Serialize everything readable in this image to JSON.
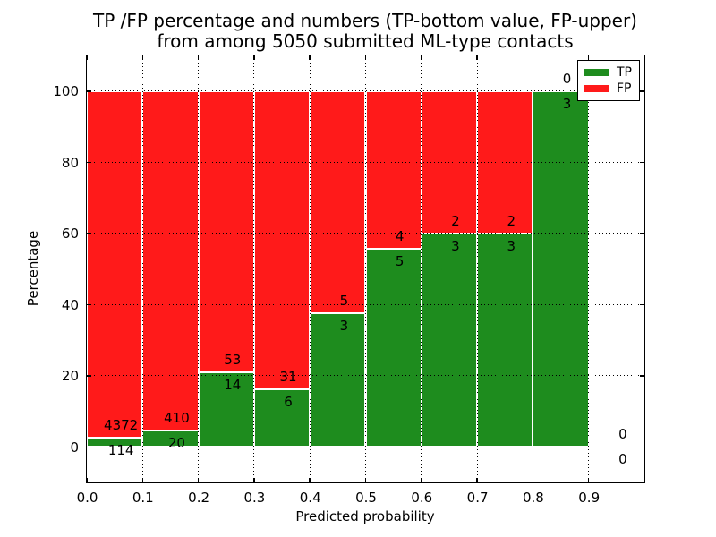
{
  "figure": {
    "title_line1": "TP /FP percentage and numbers (TP-bottom value, FP-upper)",
    "title_line2": "from among 5050 submitted ML-type contacts"
  },
  "chart_data": {
    "type": "bar",
    "subtype": "stacked-percentage-histogram",
    "title": "TP /FP percentage and numbers (TP-bottom value, FP-upper)\nfrom among 5050 submitted ML-type contacts",
    "xlabel": "Predicted probability",
    "ylabel": "Percentage",
    "xlim": [
      0.0,
      1.0
    ],
    "ylim": [
      -10,
      110
    ],
    "x_tick_labels": [
      "0.0",
      "0.1",
      "0.2",
      "0.3",
      "0.4",
      "0.5",
      "0.6",
      "0.7",
      "0.8",
      "0.9"
    ],
    "y_tick_values": [
      0,
      20,
      40,
      60,
      80,
      100
    ],
    "grid": true,
    "grid_style": "dotted",
    "bin_width": 0.1,
    "bins": [
      {
        "x_start": 0.0,
        "tp_count": 114,
        "fp_count": 4372
      },
      {
        "x_start": 0.1,
        "tp_count": 20,
        "fp_count": 410
      },
      {
        "x_start": 0.2,
        "tp_count": 14,
        "fp_count": 53
      },
      {
        "x_start": 0.3,
        "tp_count": 6,
        "fp_count": 31
      },
      {
        "x_start": 0.4,
        "tp_count": 3,
        "fp_count": 5
      },
      {
        "x_start": 0.5,
        "tp_count": 5,
        "fp_count": 4
      },
      {
        "x_start": 0.6,
        "tp_count": 3,
        "fp_count": 2
      },
      {
        "x_start": 0.7,
        "tp_count": 3,
        "fp_count": 2
      },
      {
        "x_start": 0.8,
        "tp_count": 3,
        "fp_count": 0
      },
      {
        "x_start": 0.9,
        "tp_count": 0,
        "fp_count": 0
      }
    ],
    "colors": {
      "tp": "#1e8c1e",
      "fp": "#ff1a1a",
      "bar_edge": "#ffffff",
      "axes": "#000000"
    },
    "legend": {
      "position": "upper-right",
      "entries": [
        {
          "label": "TP",
          "color": "#1e8c1e"
        },
        {
          "label": "FP",
          "color": "#ff1a1a"
        }
      ]
    }
  }
}
